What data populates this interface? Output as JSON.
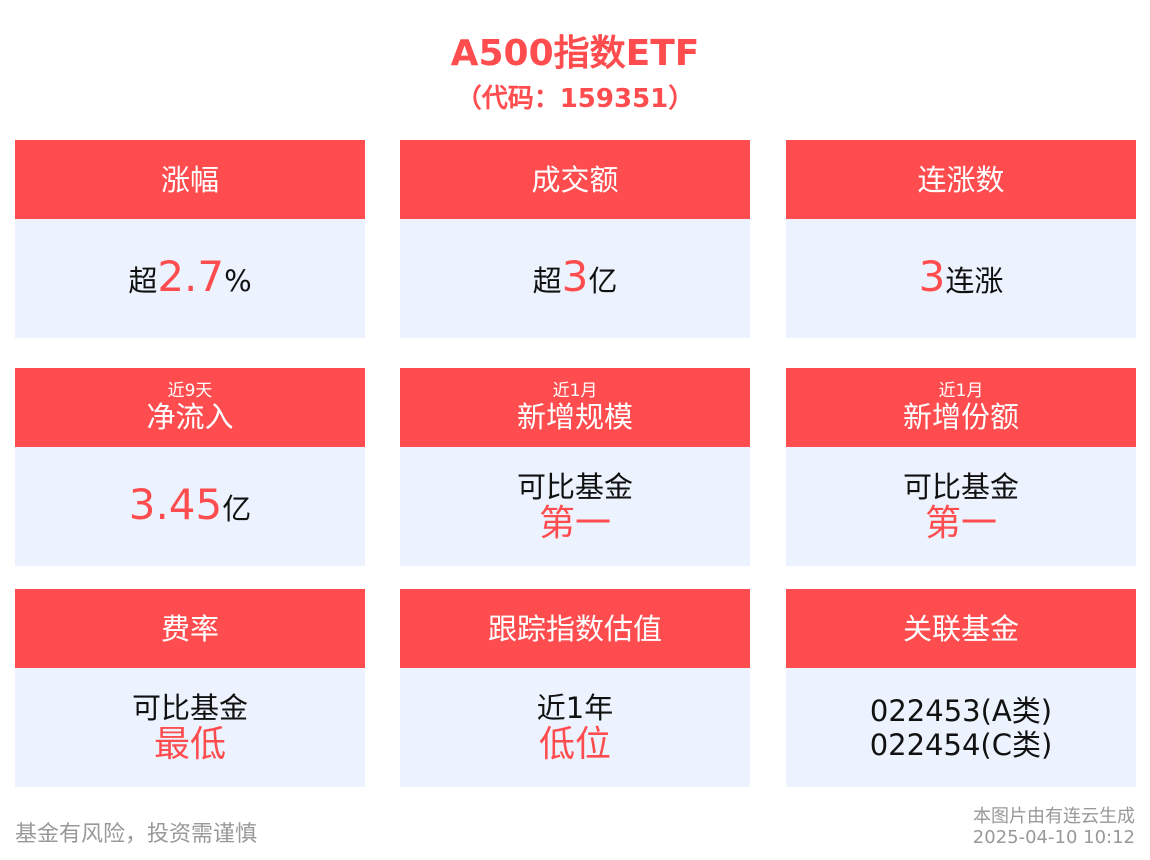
{
  "title": "A500指数ETF",
  "subtitle": "（代码：159351）",
  "cards": [
    {
      "header": "涨幅",
      "pre": "超",
      "value": "2.7",
      "post": "%"
    },
    {
      "header": "成交额",
      "pre": "超",
      "value": "3",
      "post": "亿"
    },
    {
      "header": "连涨数",
      "value": "3",
      "post": "连涨"
    },
    {
      "header_pre": "近9天",
      "header": "净流入",
      "value": "3.45",
      "post": "亿"
    },
    {
      "header_pre": "近1月",
      "header": "新增规模",
      "line1": "可比基金",
      "line2": "第一"
    },
    {
      "header_pre": "近1月",
      "header": "新增份额",
      "line1": "可比基金",
      "line2": "第一"
    },
    {
      "header": "费率",
      "line1": "可比基金",
      "line2": "最低"
    },
    {
      "header": "跟踪指数估值",
      "line1": "近1年",
      "line2": "低位"
    },
    {
      "header": "关联基金",
      "line1": "022453(A类)",
      "line2": "022454(C类)"
    }
  ],
  "footer": {
    "disclaimer": "基金有风险，投资需谨慎",
    "source": "本图片由有连云生成",
    "timestamp": "2025-04-10 10:12"
  },
  "colors": {
    "accent": "#ff4d4f",
    "card_bg": "#ecf3fe"
  }
}
